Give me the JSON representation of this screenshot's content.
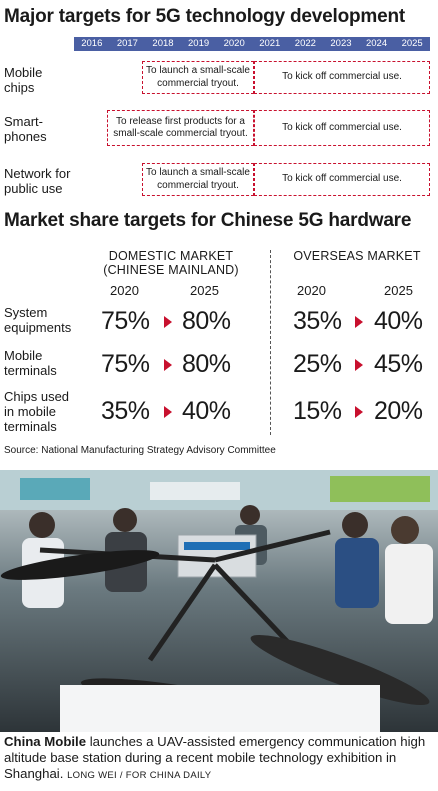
{
  "section1": {
    "title": "Major targets for 5G technology development",
    "years": [
      "2016",
      "2017",
      "2018",
      "2019",
      "2020",
      "2021",
      "2022",
      "2023",
      "2024",
      "2025"
    ],
    "rows": [
      {
        "label": [
          "Mobile",
          "chips"
        ],
        "first_box": "To launch a small-scale commercial tryout.",
        "second_box": "To kick off commercial use."
      },
      {
        "label": [
          "Smart-",
          "phones"
        ],
        "first_box": "To release first products for a small-scale commercial tryout.",
        "second_box": "To kick off commercial use."
      },
      {
        "label": [
          "Network for",
          "public use"
        ],
        "first_box": "To launch a small-scale commercial tryout.",
        "second_box": "To kick off commercial use."
      }
    ]
  },
  "section2": {
    "title": "Market share targets for Chinese 5G hardware",
    "domestic_header": [
      "DOMESTIC MARKET",
      "(CHINESE MAINLAND)"
    ],
    "overseas_header": "OVERSEAS MARKET",
    "year_a": "2020",
    "year_b": "2025",
    "rows": [
      {
        "label": [
          "System",
          "equipments"
        ],
        "dom_2020": "75%",
        "dom_2025": "80%",
        "ovs_2020": "35%",
        "ovs_2025": "40%"
      },
      {
        "label": [
          "Mobile",
          "terminals"
        ],
        "dom_2020": "75%",
        "dom_2025": "80%",
        "ovs_2020": "25%",
        "ovs_2025": "45%"
      },
      {
        "label": [
          "Chips used",
          "in mobile",
          "terminals"
        ],
        "dom_2020": "35%",
        "dom_2025": "40%",
        "ovs_2020": "15%",
        "ovs_2025": "20%"
      }
    ],
    "source": "Source: National Manufacturing Strategy Advisory Committee"
  },
  "caption": {
    "bold": "China Mobile",
    "text": " launches a UAV-assisted emergency communication high altitude base station during a recent mobile technology exhibition in Shanghai.",
    "credit": "LONG WEI / FOR CHINA DAILY"
  },
  "colors": {
    "accent": "#c8102e",
    "year_bar": "#4a5fa3"
  }
}
